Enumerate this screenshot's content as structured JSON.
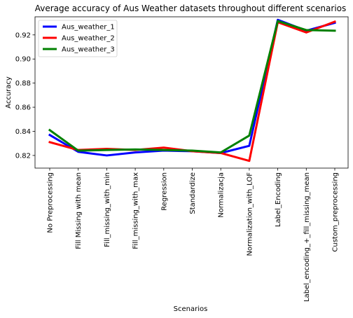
{
  "chart_data": {
    "type": "line",
    "title": "Average accuracy of Aus Weather datasets throughout different scenarios",
    "xlabel": "Scenarios",
    "ylabel": "Accuracy",
    "categories": [
      "No Preprocessing",
      "Fill Missing with mean",
      "Fill_missing_with_min",
      "Fill_missing_with_max",
      "Regression",
      "Standardize",
      "Normalizacja",
      "Normalization_with_LOF",
      "Label_Encoding",
      "Label_encoding_+_fill_missing_mean",
      "Custom_preprocessing"
    ],
    "ylim": [
      0.8095,
      0.935
    ],
    "yticks": [
      0.82,
      0.84,
      0.86,
      0.88,
      0.9,
      0.92
    ],
    "ytick_labels": [
      "0.82",
      "0.84",
      "0.86",
      "0.88",
      "0.90",
      "0.92"
    ],
    "grid": false,
    "legend_position": "top-left",
    "series": [
      {
        "name": "Aus_weather_1",
        "color": "#0000ff",
        "values": [
          0.837,
          0.823,
          0.82,
          0.8225,
          0.824,
          0.8235,
          0.822,
          0.828,
          0.9325,
          0.9235,
          0.93
        ]
      },
      {
        "name": "Aus_weather_2",
        "color": "#ff0000",
        "values": [
          0.831,
          0.8245,
          0.8255,
          0.8245,
          0.8265,
          0.8235,
          0.822,
          0.8155,
          0.9305,
          0.922,
          0.931
        ]
      },
      {
        "name": "Aus_weather_3",
        "color": "#008000",
        "values": [
          0.841,
          0.824,
          0.8245,
          0.825,
          0.8245,
          0.824,
          0.8225,
          0.8365,
          0.9315,
          0.924,
          0.9235
        ]
      }
    ]
  }
}
